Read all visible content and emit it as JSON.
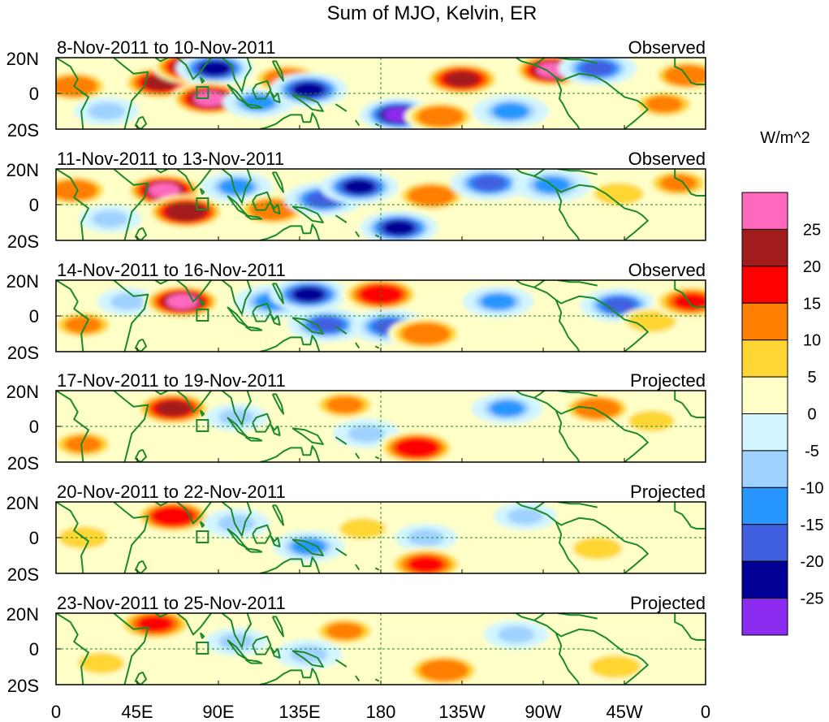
{
  "chart_data": {
    "type": "heatmap",
    "title": "Sum of MJO, Kelvin, ER",
    "xlabel": "",
    "ylabel": "",
    "x_tick_labels": [
      "0",
      "45E",
      "90E",
      "135E",
      "180",
      "135W",
      "90W",
      "45W",
      "0"
    ],
    "x_tick_lons": [
      0,
      45,
      90,
      135,
      180,
      225,
      270,
      315,
      360
    ],
    "xlim": [
      0,
      360
    ],
    "y_tick_labels": [
      "20N",
      "0",
      "20S"
    ],
    "y_tick_lats": [
      20,
      0,
      -20
    ],
    "ylim": [
      -20,
      20
    ],
    "colorbar": {
      "unit": "W/m^2",
      "labels": [
        "25",
        "20",
        "15",
        "10",
        "5",
        "0",
        "-5",
        "-10",
        "-15",
        "-20",
        "-25"
      ],
      "colors": [
        "#ff69bd",
        "#a31c1c",
        "#ff0000",
        "#ff7f00",
        "#ffd633",
        "#ffffc8",
        "#d2f5ff",
        "#a0d2ff",
        "#2896ff",
        "#4060e0",
        "#000096",
        "#8c2cf0"
      ]
    },
    "panels": [
      {
        "dates": "8-Nov-2011 to 10-Nov-2011",
        "kind": "Observed",
        "anomalies": [
          {
            "lon": 10,
            "lat": 4,
            "value": 12
          },
          {
            "lon": 28,
            "lat": -10,
            "value": -9
          },
          {
            "lon": 58,
            "lat": 6,
            "value": 20
          },
          {
            "lon": 75,
            "lat": 15,
            "value": 25
          },
          {
            "lon": 88,
            "lat": 14,
            "value": -25
          },
          {
            "lon": 85,
            "lat": -3,
            "value": 25
          },
          {
            "lon": 112,
            "lat": -5,
            "value": -12
          },
          {
            "lon": 128,
            "lat": 8,
            "value": 12
          },
          {
            "lon": 140,
            "lat": 2,
            "value": -25
          },
          {
            "lon": 190,
            "lat": -12,
            "value": -26
          },
          {
            "lon": 213,
            "lat": -13,
            "value": 12
          },
          {
            "lon": 225,
            "lat": 8,
            "value": 20
          },
          {
            "lon": 252,
            "lat": -10,
            "value": -14
          },
          {
            "lon": 275,
            "lat": 13,
            "value": 25
          },
          {
            "lon": 300,
            "lat": 14,
            "value": -20
          },
          {
            "lon": 337,
            "lat": -6,
            "value": 10
          },
          {
            "lon": 350,
            "lat": 10,
            "value": 12
          }
        ]
      },
      {
        "dates": "11-Nov-2011 to 13-Nov-2011",
        "kind": "Observed",
        "anomalies": [
          {
            "lon": 10,
            "lat": 8,
            "value": 12
          },
          {
            "lon": 30,
            "lat": -8,
            "value": -8
          },
          {
            "lon": 60,
            "lat": 8,
            "value": 25
          },
          {
            "lon": 72,
            "lat": -4,
            "value": 22
          },
          {
            "lon": 100,
            "lat": 10,
            "value": -12
          },
          {
            "lon": 120,
            "lat": -3,
            "value": 12
          },
          {
            "lon": 148,
            "lat": 3,
            "value": -20
          },
          {
            "lon": 168,
            "lat": 10,
            "value": -25
          },
          {
            "lon": 190,
            "lat": -13,
            "value": -25
          },
          {
            "lon": 208,
            "lat": 5,
            "value": 12
          },
          {
            "lon": 240,
            "lat": 12,
            "value": -20
          },
          {
            "lon": 275,
            "lat": 11,
            "value": -15
          },
          {
            "lon": 312,
            "lat": 6,
            "value": 8
          },
          {
            "lon": 345,
            "lat": 12,
            "value": 10
          }
        ]
      },
      {
        "dates": "14-Nov-2011 to 16-Nov-2011",
        "kind": "Observed",
        "anomalies": [
          {
            "lon": 15,
            "lat": -5,
            "value": 10
          },
          {
            "lon": 40,
            "lat": 8,
            "value": -8
          },
          {
            "lon": 70,
            "lat": 8,
            "value": 25
          },
          {
            "lon": 120,
            "lat": 8,
            "value": -15
          },
          {
            "lon": 140,
            "lat": 12,
            "value": -25
          },
          {
            "lon": 150,
            "lat": -5,
            "value": -20
          },
          {
            "lon": 180,
            "lat": 12,
            "value": 18
          },
          {
            "lon": 185,
            "lat": -6,
            "value": -20
          },
          {
            "lon": 205,
            "lat": -10,
            "value": 14
          },
          {
            "lon": 245,
            "lat": 8,
            "value": -12
          },
          {
            "lon": 312,
            "lat": 6,
            "value": -20
          },
          {
            "lon": 330,
            "lat": -3,
            "value": 8
          },
          {
            "lon": 352,
            "lat": 8,
            "value": 15
          }
        ]
      },
      {
        "dates": "17-Nov-2011 to 19-Nov-2011",
        "kind": "Projected",
        "anomalies": [
          {
            "lon": 15,
            "lat": -10,
            "value": 10
          },
          {
            "lon": 65,
            "lat": 10,
            "value": 20
          },
          {
            "lon": 100,
            "lat": 5,
            "value": -8
          },
          {
            "lon": 160,
            "lat": 12,
            "value": 10
          },
          {
            "lon": 172,
            "lat": -4,
            "value": -10
          },
          {
            "lon": 200,
            "lat": -12,
            "value": 18
          },
          {
            "lon": 250,
            "lat": 10,
            "value": -12
          },
          {
            "lon": 300,
            "lat": 10,
            "value": 12
          },
          {
            "lon": 330,
            "lat": 3,
            "value": 6
          }
        ]
      },
      {
        "dates": "20-Nov-2011 to 22-Nov-2011",
        "kind": "Projected",
        "anomalies": [
          {
            "lon": 15,
            "lat": 0,
            "value": 8
          },
          {
            "lon": 65,
            "lat": 12,
            "value": 18
          },
          {
            "lon": 100,
            "lat": 8,
            "value": -10
          },
          {
            "lon": 140,
            "lat": -5,
            "value": -12
          },
          {
            "lon": 170,
            "lat": 5,
            "value": 6
          },
          {
            "lon": 205,
            "lat": 0,
            "value": -8
          },
          {
            "lon": 205,
            "lat": -15,
            "value": 15
          },
          {
            "lon": 260,
            "lat": 12,
            "value": -8
          },
          {
            "lon": 300,
            "lat": -6,
            "value": 8
          }
        ]
      },
      {
        "dates": "23-Nov-2011 to 25-Nov-2011",
        "kind": "Projected",
        "anomalies": [
          {
            "lon": 25,
            "lat": -8,
            "value": 6
          },
          {
            "lon": 55,
            "lat": 14,
            "value": 15
          },
          {
            "lon": 100,
            "lat": 4,
            "value": -8
          },
          {
            "lon": 160,
            "lat": 10,
            "value": 10
          },
          {
            "lon": 140,
            "lat": -3,
            "value": -10
          },
          {
            "lon": 215,
            "lat": -12,
            "value": 14
          },
          {
            "lon": 255,
            "lat": 8,
            "value": -9
          },
          {
            "lon": 310,
            "lat": -10,
            "value": 9
          }
        ]
      }
    ]
  }
}
